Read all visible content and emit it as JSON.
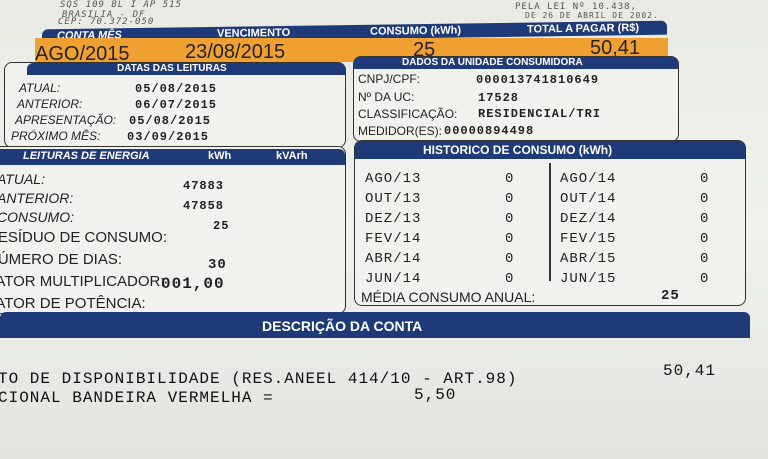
{
  "address": [
    "SQS 109 BL I AP 515",
    "BRASILIA - DF",
    "CEP: 70.372-050"
  ],
  "legal": [
    "PELA LEI Nº 10.438,",
    "DE 26 DE ABRIL DE 2002."
  ],
  "summary": {
    "headers": [
      "CONTA MÊS",
      "VENCIMENTO",
      "CONSUMO (kWh)",
      "TOTAL A PAGAR (R$)"
    ],
    "values": [
      "AGO/2015",
      "23/08/2015",
      "25",
      "50,41"
    ]
  },
  "datas": {
    "title": "DATAS DAS LEITURAS",
    "rows": [
      {
        "label": "ATUAL:",
        "value": "05/08/2015"
      },
      {
        "label": "ANTERIOR:",
        "value": "06/07/2015"
      },
      {
        "label": "APRESENTAÇÃO:",
        "value": "05/08/2015"
      },
      {
        "label": "PRÓXIMO MÊS:",
        "value": "03/09/2015"
      }
    ]
  },
  "dados": {
    "title": "DADOS DA UNIDADE CONSUMIDORA",
    "rows": [
      {
        "label": "CNPJ/CPF:",
        "value": "000013741810649"
      },
      {
        "label": "Nº DA UC:",
        "value": "17528"
      },
      {
        "label": "CLASSIFICAÇÃO:",
        "value": "RESIDENCIAL/TRI"
      },
      {
        "label": "MEDIDOR(ES):",
        "value": "00000894498"
      }
    ]
  },
  "leituras": {
    "title": "LEITURAS DE ENERGIA",
    "col1": "kWh",
    "col2": "kVArh",
    "rows": [
      {
        "label": "ATUAL:",
        "value": "47883"
      },
      {
        "label": "ANTERIOR:",
        "value": "47858"
      },
      {
        "label": "CONSUMO:",
        "value": "25"
      },
      {
        "label": "RESÍDUO DE CONSUMO:",
        "value": ""
      },
      {
        "label": "NÚMERO DE DIAS:",
        "value": "30"
      },
      {
        "label": "FATOR MULTIPLICADOR:",
        "value": "001,00"
      },
      {
        "label": "FATOR DE POTÊNCIA:",
        "value": ""
      }
    ]
  },
  "historico": {
    "title": "HISTORICO DE CONSUMO (kWh)",
    "left": [
      {
        "m": "AGO/13",
        "v": "0"
      },
      {
        "m": "OUT/13",
        "v": "0"
      },
      {
        "m": "DEZ/13",
        "v": "0"
      },
      {
        "m": "FEV/14",
        "v": "0"
      },
      {
        "m": "ABR/14",
        "v": "0"
      },
      {
        "m": "JUN/14",
        "v": "0"
      }
    ],
    "right": [
      {
        "m": "AGO/14",
        "v": "0"
      },
      {
        "m": "OUT/14",
        "v": "0"
      },
      {
        "m": "DEZ/14",
        "v": "0"
      },
      {
        "m": "FEV/15",
        "v": "0"
      },
      {
        "m": "ABR/15",
        "v": "0"
      },
      {
        "m": "JUN/15",
        "v": "0"
      }
    ],
    "media_label": "MÉDIA CONSUMO ANUAL:",
    "media_value": "25"
  },
  "descricao": {
    "title": "DESCRIÇÃO DA CONTA",
    "items": [
      {
        "text": "TO DE DISPONIBILIDADE (RES.ANEEL 414/10 - ART.98)",
        "value": "50,41"
      },
      {
        "text": "CIONAL BANDEIRA VERMELHA =",
        "value": "5,50"
      }
    ]
  }
}
